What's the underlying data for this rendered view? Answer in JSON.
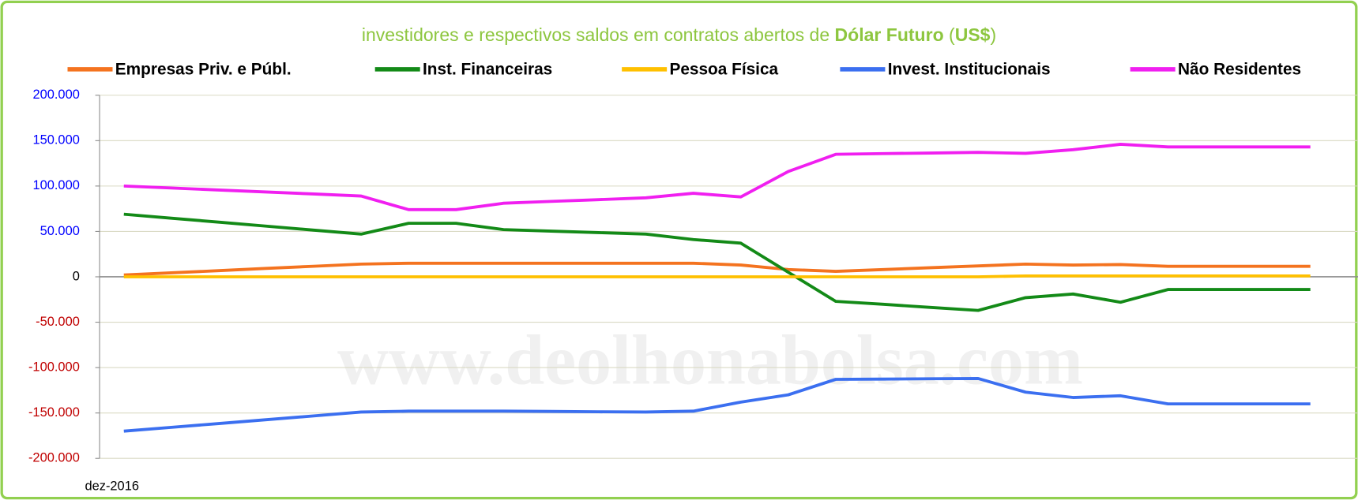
{
  "chart_data": {
    "type": "line",
    "title_parts": [
      "investidores e respectivos saldos em contratos abertos de ",
      "Dólar Futuro",
      " (",
      "US$",
      ")"
    ],
    "watermark": "www.deolhonabolsa.com",
    "categories": [
      "dez-2016",
      null,
      null,
      null,
      null,
      null,
      null,
      null,
      null,
      null,
      null,
      null,
      null,
      null,
      null,
      null,
      null,
      null,
      null,
      null,
      null,
      null,
      null,
      null,
      null,
      null
    ],
    "ylim": [
      -200000,
      200000
    ],
    "yticks": [
      {
        "value": -200000,
        "label": "-200.000"
      },
      {
        "value": -150000,
        "label": "-150.000"
      },
      {
        "value": -100000,
        "label": "-100.000"
      },
      {
        "value": -50000,
        "label": "-50.000"
      },
      0,
      {
        "value": 50000,
        "label": "50.000"
      },
      {
        "value": 100000,
        "label": "100.000"
      },
      {
        "value": 150000,
        "label": "150.000"
      },
      {
        "value": 200000,
        "label": "200.000"
      }
    ],
    "grid": true,
    "legend": "top",
    "series": [
      {
        "name": "Empresas Priv. e Públ.",
        "color": "#f4731f",
        "values": [
          2000,
          4400,
          6800,
          9200,
          11600,
          14000,
          15000,
          15000,
          15000,
          15000,
          15000,
          15000,
          15000,
          13000,
          8000,
          6000,
          8000,
          10000,
          12000,
          14000,
          13000,
          13500,
          11500,
          11500,
          11500,
          11500
        ]
      },
      {
        "name": "Inst. Financeiras",
        "color": "#138a17",
        "values": [
          69000,
          64600,
          60200,
          55800,
          51400,
          47000,
          59000,
          59000,
          52000,
          50300,
          48700,
          47000,
          41000,
          37000,
          5000,
          -27000,
          -30300,
          -33700,
          -37000,
          -23000,
          -19000,
          -28000,
          -14000,
          -14000,
          -14000,
          -14000
        ]
      },
      {
        "name": "Pessoa Física",
        "color": "#ffc000",
        "values": [
          0,
          0,
          0,
          0,
          0,
          0,
          0,
          0,
          0,
          0,
          0,
          0,
          0,
          0,
          0,
          0,
          0,
          0,
          0,
          1000,
          1000,
          1000,
          1000,
          1000,
          1000,
          1000
        ]
      },
      {
        "name": "Invest. Institucionais",
        "color": "#3b6ff0",
        "values": [
          -170000,
          -165800,
          -161600,
          -157400,
          -153200,
          -149000,
          -148000,
          -148000,
          -148000,
          -148300,
          -148700,
          -149000,
          -148000,
          -138000,
          -130000,
          -113000,
          -112700,
          -112300,
          -112000,
          -127000,
          -133000,
          -131000,
          -140000,
          -140000,
          -140000,
          -140000
        ]
      },
      {
        "name": "Não Residentes",
        "color": "#f01ff0",
        "values": [
          100000,
          97800,
          95600,
          93400,
          91200,
          89000,
          74000,
          74000,
          81000,
          83000,
          85000,
          87000,
          92000,
          88000,
          116000,
          135000,
          135700,
          136300,
          137000,
          136000,
          140000,
          146000,
          143000,
          143000,
          143000,
          143000
        ]
      }
    ]
  }
}
